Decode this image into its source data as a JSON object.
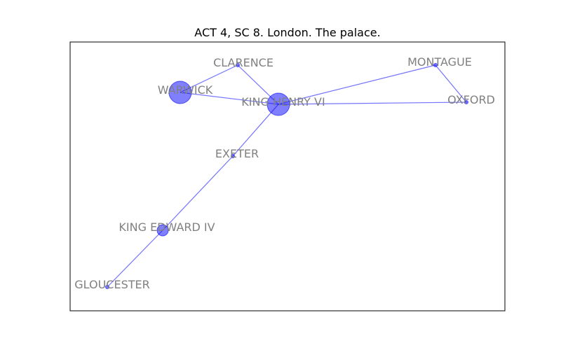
{
  "title": "ACT 4, SC 8. London. The palace.",
  "colors": {
    "node": "#0000ff",
    "edge": "#0000ff",
    "label": "#808080",
    "frame": "#000000"
  },
  "nodes": [
    {
      "id": "clarence",
      "label": "CLARENCE",
      "weight": 1
    },
    {
      "id": "montague",
      "label": "MONTAGUE",
      "weight": 1
    },
    {
      "id": "warwick",
      "label": "WARWICK",
      "weight": 5
    },
    {
      "id": "king-henry-vi",
      "label": "KING HENRY VI",
      "weight": 5
    },
    {
      "id": "oxford",
      "label": "OXFORD",
      "weight": 1
    },
    {
      "id": "exeter",
      "label": "EXETER",
      "weight": 1
    },
    {
      "id": "king-edward-iv",
      "label": "KING EDWARD IV",
      "weight": 2
    },
    {
      "id": "gloucester",
      "label": "GLOUCESTER",
      "weight": 1
    }
  ],
  "edges": [
    [
      "warwick",
      "clarence"
    ],
    [
      "warwick",
      "king-henry-vi"
    ],
    [
      "clarence",
      "king-henry-vi"
    ],
    [
      "king-henry-vi",
      "montague"
    ],
    [
      "king-henry-vi",
      "oxford"
    ],
    [
      "montague",
      "oxford"
    ],
    [
      "king-henry-vi",
      "exeter"
    ],
    [
      "exeter",
      "king-edward-iv"
    ],
    [
      "king-edward-iv",
      "gloucester"
    ]
  ]
}
